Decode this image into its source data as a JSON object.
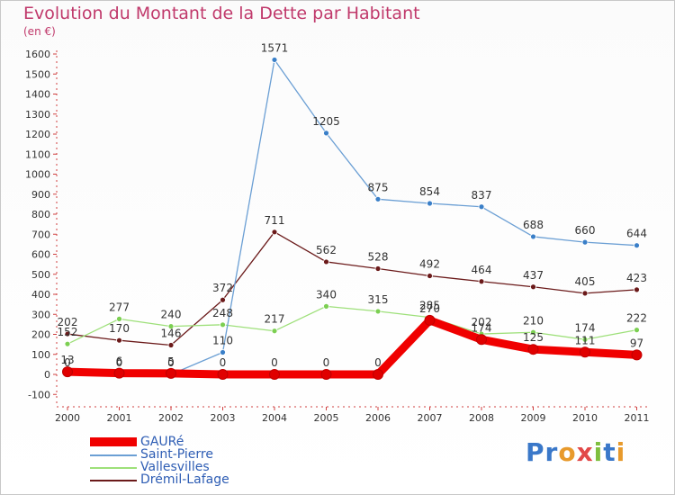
{
  "header": {
    "title": "Evolution du Montant de la Dette par Habitant",
    "unit": "(en €)"
  },
  "logo": {
    "text": "Proxiti",
    "letters": [
      "P",
      "r",
      "o",
      "x",
      "i",
      "t",
      "i"
    ],
    "letter_colors": [
      "#3a78c9",
      "#3a78c9",
      "#e89a2c",
      "#e24848",
      "#7fbf3f",
      "#3a78c9",
      "#e89a2c"
    ]
  },
  "chart_data": {
    "type": "line",
    "title": "Evolution du Montant de la Dette par Habitant",
    "ylabel": "(en €)",
    "x": [
      "2000",
      "2001",
      "2002",
      "2003",
      "2004",
      "2005",
      "2006",
      "2007",
      "2008",
      "2009",
      "2010",
      "2011"
    ],
    "ylim": [
      -100,
      1600
    ],
    "yticks": [
      -100,
      0,
      100,
      200,
      300,
      400,
      500,
      600,
      700,
      800,
      900,
      1000,
      1100,
      1200,
      1300,
      1400,
      1500,
      1600
    ],
    "grid": false,
    "legend_position": "bottom-left",
    "series": [
      {
        "name": "Drémil-Lafage",
        "color": "#6b1a1a",
        "marker": "#6b1a1a",
        "values": [
          202,
          170,
          146,
          372,
          711,
          562,
          528,
          492,
          464,
          437,
          405,
          423
        ],
        "labels": [
          "202",
          "170",
          "146",
          "372",
          "711",
          "562",
          "528",
          "492",
          "464",
          "437",
          "405",
          "423"
        ]
      },
      {
        "name": "Vallesvilles",
        "color": "#9ee07a",
        "marker": "#7ccf52",
        "values": [
          152,
          277,
          240,
          248,
          217,
          340,
          315,
          285,
          202,
          210,
          174,
          222
        ],
        "labels": [
          "152",
          "277",
          "240",
          "248",
          "217",
          "340",
          "315",
          "285",
          "202",
          "210",
          "174",
          "222"
        ]
      },
      {
        "name": "Saint-Pierre",
        "color": "#6b9fd4",
        "marker": "#3a7fc8",
        "values": [
          0,
          0,
          0,
          110,
          1571,
          1205,
          875,
          854,
          837,
          688,
          660,
          644
        ],
        "labels": [
          "0",
          "0",
          "0",
          "110",
          "1571",
          "1205",
          "875",
          "854",
          "837",
          "688",
          "660",
          "644"
        ]
      },
      {
        "name": "GAURé",
        "color": "#f00000",
        "marker": "#e00000",
        "values": [
          13,
          6,
          5,
          0,
          0,
          0,
          0,
          270,
          174,
          125,
          111,
          97
        ],
        "labels": [
          "13",
          "6",
          "5",
          "0",
          "0",
          "0",
          "0",
          "270",
          "174",
          "125",
          "111",
          "97"
        ]
      }
    ]
  },
  "legend": {
    "items": [
      {
        "label": "GAURé",
        "color": "#f00000"
      },
      {
        "label": "Saint-Pierre",
        "color": "#6b9fd4"
      },
      {
        "label": "Vallesvilles",
        "color": "#9ee07a"
      },
      {
        "label": "Drémil-Lafage",
        "color": "#6b1a1a"
      }
    ]
  }
}
